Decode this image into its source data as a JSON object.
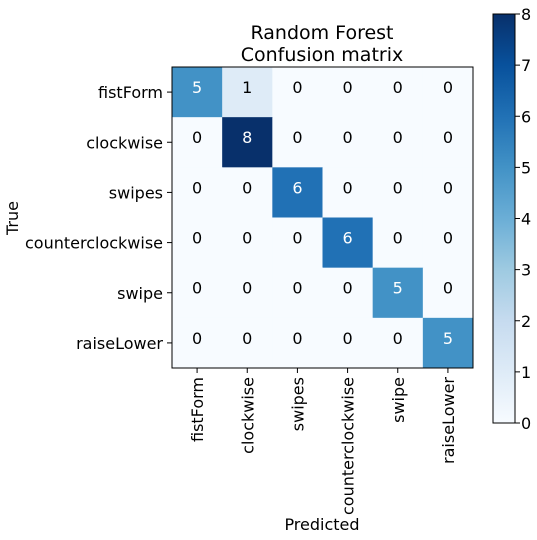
{
  "chart_data": {
    "type": "heatmap",
    "title": "Random Forest\nConfusion matrix",
    "xlabel": "Predicted",
    "ylabel": "True",
    "categories": [
      "fistForm",
      "clockwise",
      "swipes",
      "counterclockwise",
      "swipe",
      "raiseLower"
    ],
    "matrix": [
      [
        5,
        1,
        0,
        0,
        0,
        0
      ],
      [
        0,
        8,
        0,
        0,
        0,
        0
      ],
      [
        0,
        0,
        6,
        0,
        0,
        0
      ],
      [
        0,
        0,
        0,
        6,
        0,
        0
      ],
      [
        0,
        0,
        0,
        0,
        5,
        0
      ],
      [
        0,
        0,
        0,
        0,
        0,
        5
      ]
    ],
    "colorbar": {
      "min": 0,
      "max": 8,
      "ticks": [
        0,
        1,
        2,
        3,
        4,
        5,
        6,
        7,
        8
      ]
    },
    "colormap": "Blues",
    "colormap_stops": [
      "#f7fbff",
      "#deebf7",
      "#c6dbef",
      "#9ecae1",
      "#6baed6",
      "#4292c6",
      "#2171b5",
      "#08519c",
      "#08306b"
    ],
    "text_colors": {
      "dark": "#000000",
      "light": "#ffffff"
    }
  }
}
